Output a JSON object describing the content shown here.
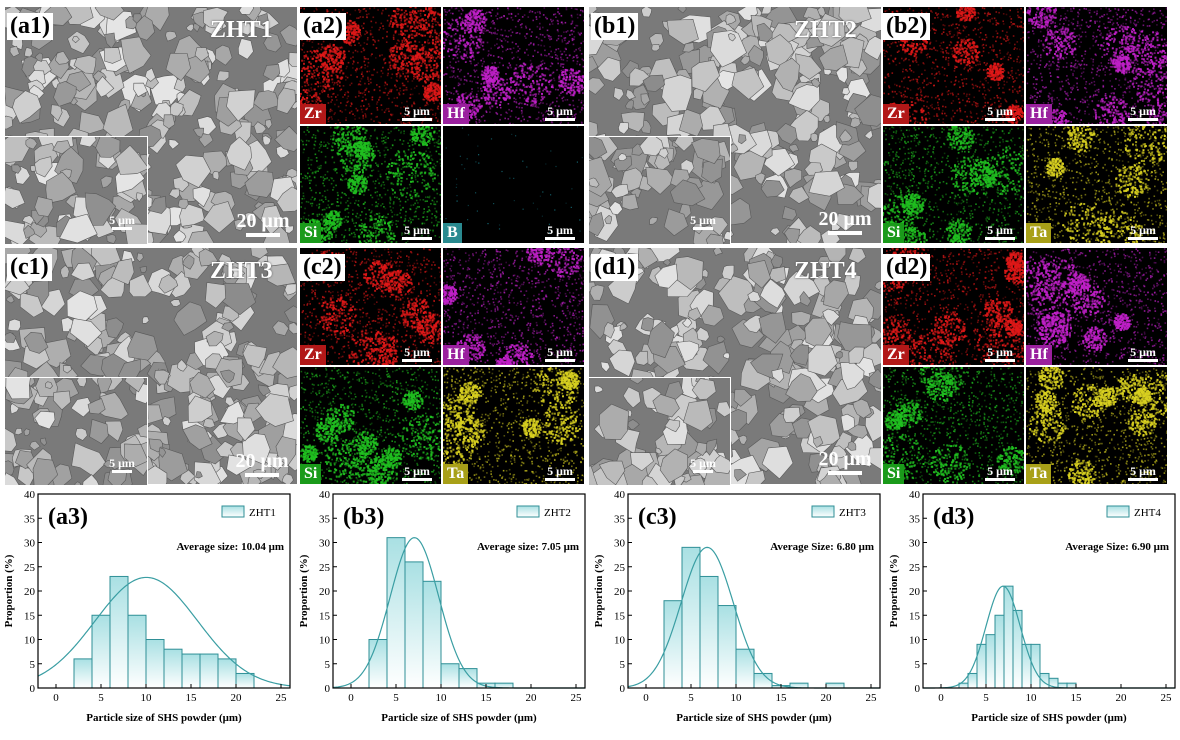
{
  "panels": {
    "a": {
      "sem_label": "(a1)",
      "map_label": "(a2)",
      "sample": "ZHT1",
      "scale_big": "20 μm",
      "scale_small": "5 μm",
      "elements": [
        {
          "symbol": "Zr",
          "color": "#e01818",
          "label_bg": "#b21818"
        },
        {
          "symbol": "Hf",
          "color": "#c020c8",
          "label_bg": "#9a209e"
        },
        {
          "symbol": "Si",
          "color": "#20c020",
          "label_bg": "#1a9a1a"
        },
        {
          "symbol": "B",
          "color": "#1a8a9a",
          "label_bg": "#2a8a90"
        }
      ]
    },
    "b": {
      "sem_label": "(b1)",
      "map_label": "(b2)",
      "sample": "ZHT2",
      "scale_big": "20 μm",
      "scale_small": "5 μm",
      "elements": [
        {
          "symbol": "Zr",
          "color": "#e01818",
          "label_bg": "#b21818"
        },
        {
          "symbol": "Hf",
          "color": "#c020c8",
          "label_bg": "#9a209e"
        },
        {
          "symbol": "Si",
          "color": "#20c020",
          "label_bg": "#1a9a1a"
        },
        {
          "symbol": "Ta",
          "color": "#d8d020",
          "label_bg": "#a8a018"
        }
      ]
    },
    "c": {
      "sem_label": "(c1)",
      "map_label": "(c2)",
      "sample": "ZHT3",
      "scale_big": "20 μm",
      "scale_small": "5 μm",
      "elements": [
        {
          "symbol": "Zr",
          "color": "#e01818",
          "label_bg": "#b21818"
        },
        {
          "symbol": "Hf",
          "color": "#c020c8",
          "label_bg": "#9a209e"
        },
        {
          "symbol": "Si",
          "color": "#20c020",
          "label_bg": "#1a9a1a"
        },
        {
          "symbol": "Ta",
          "color": "#d8d020",
          "label_bg": "#a8a018"
        }
      ]
    },
    "d": {
      "sem_label": "(d1)",
      "map_label": "(d2)",
      "sample": "ZHT4",
      "scale_big": "20 μm",
      "scale_small": "5 μm",
      "elements": [
        {
          "symbol": "Zr",
          "color": "#e01818",
          "label_bg": "#b21818"
        },
        {
          "symbol": "Hf",
          "color": "#c020c8",
          "label_bg": "#9a209e"
        },
        {
          "symbol": "Si",
          "color": "#20c020",
          "label_bg": "#1a9a1a"
        },
        {
          "symbol": "Ta",
          "color": "#d8d020",
          "label_bg": "#a8a018"
        }
      ]
    }
  },
  "chart_data": [
    {
      "type": "bar",
      "panel_label": "(a3)",
      "legend": "ZHT1",
      "legend_position": "top-right",
      "annotation": "Average size: 10.04 μm",
      "xlabel": "Particle size of SHS powder (μm)",
      "ylabel": "Proportion (%)",
      "xlim": [
        -2,
        26
      ],
      "ylim": [
        0,
        40
      ],
      "xticks": [
        0,
        5,
        10,
        15,
        20,
        25
      ],
      "yticks": [
        0,
        5,
        10,
        15,
        20,
        25,
        30,
        35,
        40
      ],
      "bin_width": 2,
      "bin_edges_start": [
        2,
        4,
        6,
        8,
        10,
        12,
        14,
        16,
        18,
        20
      ],
      "values": [
        6,
        15,
        23,
        15,
        10,
        8,
        7,
        7,
        6,
        3
      ],
      "fit": {
        "mean": 10.04,
        "sd": 5.7,
        "peak": 22.8
      }
    },
    {
      "type": "bar",
      "panel_label": "(b3)",
      "legend": "ZHT2",
      "legend_position": "top-right",
      "annotation": "Average size: 7.05 μm",
      "xlabel": "Particle size of SHS powder (μm)",
      "ylabel": "Proportion (%)",
      "xlim": [
        -2,
        26
      ],
      "ylim": [
        0,
        40
      ],
      "xticks": [
        0,
        5,
        10,
        15,
        20,
        25
      ],
      "yticks": [
        0,
        5,
        10,
        15,
        20,
        25,
        30,
        35,
        40
      ],
      "bin_width": 2,
      "bin_edges_start": [
        2,
        4,
        6,
        8,
        10,
        12,
        14,
        16
      ],
      "values": [
        10,
        31,
        26,
        22,
        5,
        4,
        1,
        1
      ],
      "fit": {
        "mean": 7.05,
        "sd": 2.7,
        "peak": 31
      }
    },
    {
      "type": "bar",
      "panel_label": "(c3)",
      "legend": "ZHT3",
      "legend_position": "top-right",
      "annotation": "Average Size: 6.80 μm",
      "xlabel": "Particle size of SHS powder (μm)",
      "ylabel": "Proportion (%)",
      "xlim": [
        -2,
        26
      ],
      "ylim": [
        0,
        40
      ],
      "xticks": [
        0,
        5,
        10,
        15,
        20,
        25
      ],
      "yticks": [
        0,
        5,
        10,
        15,
        20,
        25,
        30,
        35,
        40
      ],
      "bin_width": 2,
      "bin_edges_start": [
        2,
        4,
        6,
        8,
        10,
        12,
        14,
        16,
        20
      ],
      "values": [
        18,
        29,
        23,
        17,
        8,
        3,
        0.5,
        1,
        1
      ],
      "fit": {
        "mean": 6.8,
        "sd": 2.9,
        "peak": 29
      }
    },
    {
      "type": "bar",
      "panel_label": "(d3)",
      "legend": "ZHT4",
      "legend_position": "top-right",
      "annotation": "Average Size: 6.90 μm",
      "xlabel": "Particle size of SHS powder (μm)",
      "ylabel": "Proportion (%)",
      "xlim": [
        -2,
        26
      ],
      "ylim": [
        0,
        40
      ],
      "xticks": [
        0,
        5,
        10,
        15,
        20,
        25
      ],
      "yticks": [
        0,
        5,
        10,
        15,
        20,
        25,
        30,
        35,
        40
      ],
      "bin_width": 1,
      "bin_edges_start": [
        2,
        3,
        4,
        5,
        6,
        7,
        8,
        9,
        10,
        11,
        12,
        13,
        14
      ],
      "values": [
        1,
        3,
        9,
        11,
        15,
        21,
        16,
        9,
        9,
        3,
        2,
        1,
        1
      ],
      "fit": {
        "mean": 6.9,
        "sd": 1.9,
        "peak": 21
      }
    }
  ]
}
